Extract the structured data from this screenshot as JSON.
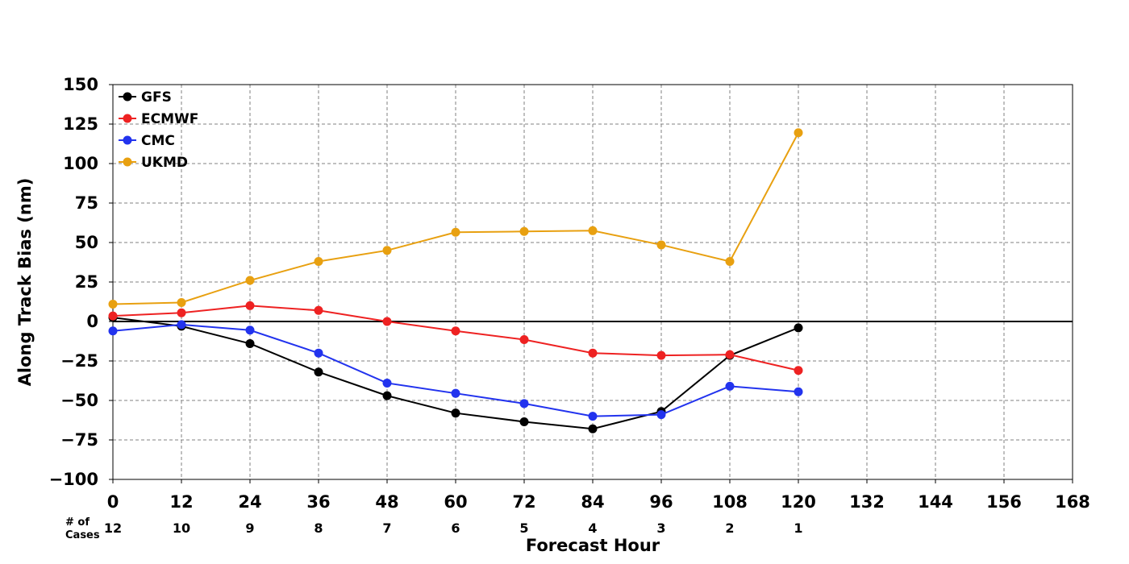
{
  "chart_data": {
    "type": "line",
    "xlabel": "Forecast Hour",
    "ylabel": "Along Track Bias (nm)",
    "xlim": [
      0,
      168
    ],
    "ylim": [
      -100,
      150
    ],
    "xticks": [
      0,
      12,
      24,
      36,
      48,
      60,
      72,
      84,
      96,
      108,
      120,
      132,
      144,
      156,
      168
    ],
    "yticks": [
      150,
      125,
      100,
      75,
      50,
      25,
      0,
      -25,
      -50,
      -75,
      -100
    ],
    "ytick_labels": [
      "150",
      "125",
      "100",
      "75",
      "50",
      "25",
      "0",
      "−25",
      "−50",
      "−75",
      "−100"
    ],
    "grid": true,
    "legend_position": "top-left",
    "x": [
      0,
      12,
      24,
      36,
      48,
      60,
      72,
      84,
      96,
      108,
      120
    ],
    "series": [
      {
        "name": "GFS",
        "color": "#000000",
        "values": [
          2.5,
          -3,
          -14,
          -32,
          -47,
          -58,
          -63.5,
          -68,
          -57,
          -21.5,
          -4
        ]
      },
      {
        "name": "ECMWF",
        "color": "#ee2222",
        "values": [
          3.5,
          5.5,
          10,
          7,
          0,
          -6,
          -11.5,
          -20,
          -21.5,
          -21,
          -31
        ]
      },
      {
        "name": "CMC",
        "color": "#2233ee",
        "values": [
          -6,
          -2,
          -5.5,
          -20,
          -39,
          -45.5,
          -52,
          -60,
          -59,
          -41,
          -44.5
        ]
      },
      {
        "name": "UKMD",
        "color": "#e8a010",
        "values": [
          11,
          12,
          26,
          38,
          45,
          56.5,
          57,
          57.5,
          48.5,
          38,
          119.5
        ]
      }
    ],
    "cases_title": "# of\nCases",
    "cases": [
      {
        "hour": 0,
        "count": "12"
      },
      {
        "hour": 12,
        "count": "10"
      },
      {
        "hour": 24,
        "count": "9"
      },
      {
        "hour": 36,
        "count": "8"
      },
      {
        "hour": 48,
        "count": "7"
      },
      {
        "hour": 60,
        "count": "6"
      },
      {
        "hour": 72,
        "count": "5"
      },
      {
        "hour": 84,
        "count": "4"
      },
      {
        "hour": 96,
        "count": "3"
      },
      {
        "hour": 108,
        "count": "2"
      },
      {
        "hour": 120,
        "count": "1"
      }
    ]
  }
}
